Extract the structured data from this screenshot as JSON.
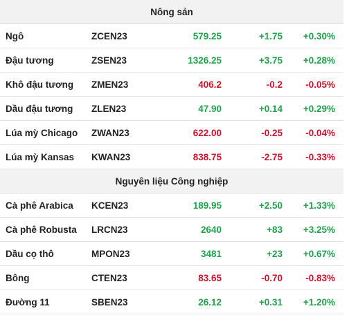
{
  "sections": [
    {
      "title": "Nông sản",
      "rows": [
        {
          "name": "Ngô",
          "code": "ZCEN23",
          "price": "579.25",
          "change": "+1.75",
          "pct": "+0.30%",
          "dir": "up"
        },
        {
          "name": "Đậu tương",
          "code": "ZSEN23",
          "price": "1326.25",
          "change": "+3.75",
          "pct": "+0.28%",
          "dir": "up"
        },
        {
          "name": "Khô đậu tương",
          "code": "ZMEN23",
          "price": "406.2",
          "change": "-0.2",
          "pct": "-0.05%",
          "dir": "down"
        },
        {
          "name": "Dầu đậu tương",
          "code": "ZLEN23",
          "price": "47.90",
          "change": "+0.14",
          "pct": "+0.29%",
          "dir": "up"
        },
        {
          "name": "Lúa mỳ Chicago",
          "code": "ZWAN23",
          "price": "622.00",
          "change": "-0.25",
          "pct": "-0.04%",
          "dir": "down"
        },
        {
          "name": "Lúa mỳ Kansas",
          "code": "KWAN23",
          "price": "838.75",
          "change": "-2.75",
          "pct": "-0.33%",
          "dir": "down"
        }
      ]
    },
    {
      "title": "Nguyên liệu Công nghiệp",
      "rows": [
        {
          "name": "Cà phê Arabica",
          "code": "KCEN23",
          "price": "189.95",
          "change": "+2.50",
          "pct": "+1.33%",
          "dir": "up"
        },
        {
          "name": "Cà phê Robusta",
          "code": "LRCN23",
          "price": "2640",
          "change": "+83",
          "pct": "+3.25%",
          "dir": "up"
        },
        {
          "name": "Dầu cọ thô",
          "code": "MPON23",
          "price": "3481",
          "change": "+23",
          "pct": "+0.67%",
          "dir": "up"
        },
        {
          "name": "Bông",
          "code": "CTEN23",
          "price": "83.65",
          "change": "-0.70",
          "pct": "-0.83%",
          "dir": "down"
        },
        {
          "name": "Đường 11",
          "code": "SBEN23",
          "price": "26.12",
          "change": "+0.31",
          "pct": "+1.20%",
          "dir": "up"
        }
      ]
    }
  ],
  "colors": {
    "up": "#1ea34a",
    "down": "#d0112b",
    "header_bg": "#f2f2f2"
  }
}
